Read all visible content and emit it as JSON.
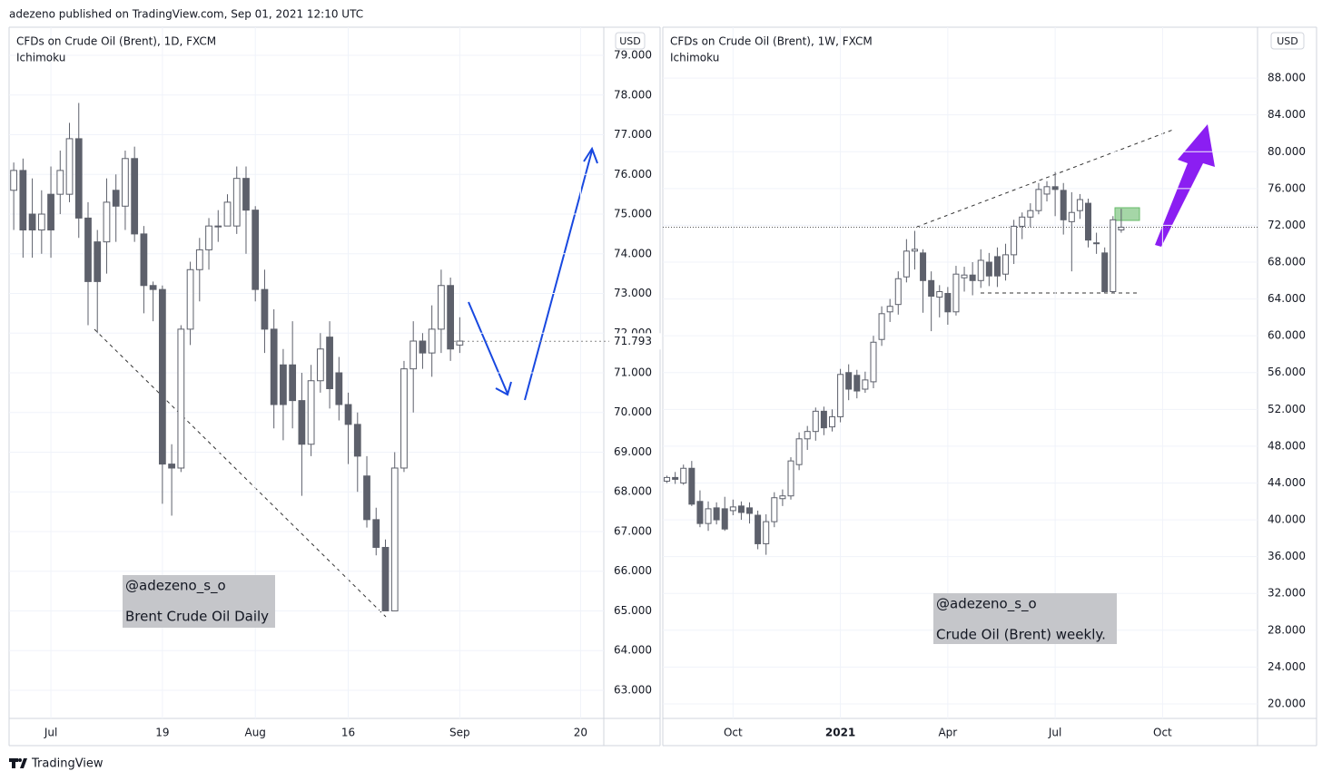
{
  "header": {
    "text": "adezeno published on TradingView.com, Sep 01, 2021 12:10 UTC"
  },
  "footer": {
    "brand": "TradingView"
  },
  "chart_data": [
    {
      "type": "candlestick",
      "title": "CFDs on Crude Oil (Brent), 1D, FXCM",
      "subtitle": "Ichimoku",
      "currency": "USD",
      "annotations": [
        "@adezeno_s_o",
        "Brent Crude Oil Daily"
      ],
      "up_color": "#ffffff",
      "down_color": "#5d606b",
      "wick_color": "#5d606b",
      "grid": true,
      "categories": [
        null,
        null,
        null,
        null,
        "Jul",
        null,
        null,
        null,
        null,
        null,
        null,
        null,
        null,
        null,
        null,
        null,
        "19",
        null,
        null,
        null,
        null,
        null,
        null,
        null,
        null,
        null,
        "Aug",
        null,
        null,
        null,
        null,
        null,
        null,
        null,
        null,
        null,
        "16",
        null,
        null,
        null,
        null,
        null,
        null,
        null,
        null,
        null,
        null,
        null,
        "Sep",
        null,
        null,
        null,
        null,
        null,
        null,
        null,
        null,
        null,
        null,
        null,
        null,
        "20",
        null,
        null
      ],
      "open": [
        75.6,
        76.1,
        75.0,
        74.6,
        75.5,
        75.5,
        75.5,
        76.9,
        74.9,
        74.3,
        74.3,
        75.6,
        75.2,
        76.4,
        74.5,
        73.2,
        73.1,
        68.7,
        68.6,
        72.1,
        73.6,
        74.1,
        74.7,
        74.7,
        74.7,
        75.9,
        75.1,
        73.1,
        72.1,
        71.2,
        71.2,
        70.3,
        69.2,
        70.8,
        71.9,
        71.0,
        70.2,
        69.7,
        68.4,
        67.3,
        66.6,
        65.0,
        68.6,
        71.1,
        71.8,
        71.5,
        72.1,
        73.2,
        71.7,
        null,
        null,
        null,
        null,
        null,
        null,
        null,
        null,
        null,
        null,
        null,
        null,
        null,
        null,
        null
      ],
      "high": [
        76.3,
        76.4,
        75.9,
        75.6,
        76.2,
        76.6,
        77.3,
        77.8,
        75.3,
        74.6,
        75.9,
        76.0,
        76.6,
        76.7,
        74.7,
        73.3,
        73.2,
        69.2,
        72.2,
        73.8,
        74.4,
        74.9,
        75.1,
        75.5,
        76.2,
        76.2,
        75.2,
        73.6,
        72.6,
        71.6,
        72.3,
        71.0,
        71.2,
        72.0,
        72.3,
        71.4,
        70.5,
        70.0,
        68.9,
        67.6,
        66.8,
        69.0,
        71.3,
        72.3,
        72.0,
        72.7,
        73.6,
        73.4,
        72.4,
        null,
        null,
        null,
        null,
        null,
        null,
        null,
        null,
        null,
        null,
        null,
        null,
        null,
        null,
        null
      ],
      "low": [
        74.6,
        73.9,
        73.9,
        74.0,
        73.9,
        75.0,
        75.3,
        74.4,
        72.2,
        72.0,
        73.5,
        74.3,
        74.6,
        74.3,
        72.5,
        72.3,
        67.7,
        67.4,
        68.5,
        71.7,
        72.8,
        73.6,
        74.3,
        74.7,
        74.5,
        74.0,
        72.8,
        71.5,
        69.6,
        69.3,
        69.6,
        67.9,
        68.9,
        70.5,
        70.1,
        69.8,
        68.7,
        68.0,
        67.1,
        66.4,
        65.0,
        65.0,
        68.5,
        70.0,
        71.1,
        70.9,
        71.5,
        71.3,
        71.5,
        null,
        null,
        null,
        null,
        null,
        null,
        null,
        null,
        null,
        null,
        null,
        null,
        null,
        null,
        null
      ],
      "close": [
        76.1,
        74.6,
        74.6,
        75.0,
        74.6,
        76.1,
        76.9,
        74.9,
        73.3,
        73.3,
        75.3,
        75.2,
        76.4,
        74.5,
        73.2,
        73.1,
        68.7,
        68.6,
        72.1,
        73.6,
        74.1,
        74.7,
        74.7,
        75.3,
        75.9,
        75.1,
        73.1,
        72.1,
        70.2,
        70.2,
        70.3,
        69.2,
        70.8,
        71.6,
        70.6,
        70.2,
        69.7,
        68.9,
        67.3,
        66.6,
        65.0,
        68.6,
        71.1,
        71.8,
        71.5,
        72.1,
        73.2,
        71.6,
        71.8,
        null,
        null,
        null,
        null,
        null,
        null,
        null,
        null,
        null,
        null,
        null,
        null,
        null,
        null,
        null
      ],
      "last_price": 71.793,
      "ylim": [
        62.29,
        79.71
      ],
      "yticks": [
        {
          "value": 63,
          "label": "63.000"
        },
        {
          "value": 64,
          "label": "64.000"
        },
        {
          "value": 65,
          "label": "65.000"
        },
        {
          "value": 66,
          "label": "66.000"
        },
        {
          "value": 67,
          "label": "67.000"
        },
        {
          "value": 68,
          "label": "68.000"
        },
        {
          "value": 69,
          "label": "69.000"
        },
        {
          "value": 70,
          "label": "70.000"
        },
        {
          "value": 71,
          "label": "71.000"
        },
        {
          "value": 72,
          "label": "72.000"
        },
        {
          "value": 73,
          "label": "73.000"
        },
        {
          "value": 74,
          "label": "74.000"
        },
        {
          "value": 75,
          "label": "75.000"
        },
        {
          "value": 76,
          "label": "76.000"
        },
        {
          "value": 77,
          "label": "77.000"
        },
        {
          "value": 78,
          "label": "78.000"
        },
        {
          "value": 79,
          "label": "79.000"
        }
      ]
    },
    {
      "type": "candlestick",
      "title": "CFDs on Crude Oil (Brent), 1W, FXCM",
      "subtitle": "Ichimoku",
      "currency": "USD",
      "annotations": [
        "@adezeno_s_o",
        "Crude Oil (Brent) weekly."
      ],
      "up_color": "#ffffff",
      "down_color": "#5d606b",
      "wick_color": "#5d606b",
      "grid": true,
      "categories": [
        null,
        null,
        null,
        null,
        null,
        null,
        null,
        null,
        "Oct",
        null,
        null,
        null,
        null,
        null,
        null,
        null,
        null,
        null,
        null,
        null,
        null,
        "2021",
        null,
        null,
        null,
        null,
        null,
        null,
        null,
        null,
        null,
        null,
        null,
        null,
        "Apr",
        null,
        null,
        null,
        null,
        null,
        null,
        null,
        null,
        null,
        null,
        null,
        null,
        "Jul",
        null,
        null,
        null,
        null,
        null,
        null,
        null,
        null,
        null,
        null,
        null,
        null,
        "Oct",
        null,
        null,
        null,
        null,
        null,
        null,
        null,
        null,
        null,
        null,
        null
      ],
      "open": [
        44.2,
        44.6,
        44.0,
        45.6,
        42.0,
        39.6,
        41.3,
        41.2,
        41.0,
        41.5,
        41.3,
        40.5,
        37.4,
        39.8,
        42.3,
        42.6,
        46.0,
        48.8,
        49.6,
        51.8,
        50.1,
        51.2,
        56.0,
        55.7,
        54.2,
        55.0,
        59.6,
        62.6,
        63.4,
        66.4,
        69.2,
        69.0,
        66.0,
        64.2,
        64.6,
        62.6,
        66.3,
        66.6,
        66.0,
        68.0,
        68.6,
        66.7,
        68.8,
        71.9,
        72.9,
        73.6,
        75.4,
        76.2,
        75.8,
        72.4,
        73.6,
        74.4,
        70.1,
        69.0,
        64.8,
        71.5,
        null,
        null,
        null,
        null,
        null,
        null,
        null,
        null,
        null,
        null,
        null,
        null,
        null,
        null,
        null,
        null
      ],
      "high": [
        44.8,
        45.2,
        46.0,
        46.4,
        43.2,
        42.0,
        41.9,
        42.5,
        42.2,
        42.0,
        41.9,
        41.0,
        40.6,
        43.0,
        43.3,
        46.8,
        49.5,
        50.2,
        52.2,
        52.3,
        52.0,
        56.4,
        56.9,
        56.3,
        56.1,
        60.0,
        63.2,
        64.0,
        67.0,
        70.5,
        71.4,
        69.4,
        67.0,
        65.5,
        65.3,
        67.6,
        67.5,
        68.0,
        69.4,
        69.0,
        69.6,
        70.0,
        72.6,
        73.4,
        74.4,
        76.6,
        76.8,
        77.8,
        76.6,
        75.6,
        75.4,
        74.9,
        71.2,
        69.6,
        73.0,
        73.8,
        null,
        null,
        null,
        null,
        null,
        null,
        null,
        null,
        null,
        null,
        null,
        null,
        null,
        null,
        null,
        null
      ],
      "low": [
        44.0,
        43.9,
        43.8,
        41.5,
        39.2,
        38.8,
        39.5,
        38.8,
        40.5,
        40.0,
        39.6,
        36.8,
        36.2,
        39.2,
        41.5,
        42.2,
        45.4,
        47.6,
        48.6,
        49.2,
        49.6,
        50.6,
        53.0,
        53.2,
        53.8,
        54.3,
        58.9,
        61.5,
        62.3,
        65.8,
        67.2,
        62.5,
        60.5,
        62.0,
        61.2,
        62.2,
        64.8,
        64.4,
        65.2,
        65.4,
        65.3,
        66.0,
        67.8,
        70.5,
        71.8,
        73.2,
        74.6,
        73.0,
        71.0,
        67.0,
        72.7,
        69.6,
        68.9,
        64.6,
        64.6,
        71.2,
        null,
        null,
        null,
        null,
        null,
        null,
        null,
        null,
        null,
        null,
        null,
        null,
        null,
        null,
        null,
        null
      ],
      "close": [
        44.6,
        44.4,
        45.6,
        41.7,
        39.6,
        41.2,
        40.0,
        39.0,
        41.4,
        40.8,
        40.7,
        37.4,
        39.8,
        42.4,
        42.6,
        46.4,
        48.8,
        49.6,
        51.8,
        50.0,
        51.2,
        55.8,
        54.2,
        54.0,
        55.2,
        59.3,
        62.4,
        63.2,
        66.2,
        69.2,
        69.4,
        66.0,
        64.3,
        64.8,
        62.6,
        66.7,
        66.6,
        66.0,
        68.2,
        66.5,
        66.5,
        68.8,
        71.9,
        72.9,
        73.6,
        75.9,
        76.2,
        75.9,
        72.6,
        73.4,
        74.8,
        70.4,
        70.0,
        64.8,
        72.6,
        71.8,
        null,
        null,
        null,
        null,
        null,
        null,
        null,
        null,
        null,
        null,
        null,
        null,
        null,
        null,
        null,
        null
      ],
      "price_line": 71.793,
      "ylim": [
        18.42,
        93.53
      ],
      "yticks": [
        {
          "value": 20,
          "label": "20.000"
        },
        {
          "value": 24,
          "label": "24.000"
        },
        {
          "value": 28,
          "label": "28.000"
        },
        {
          "value": 32,
          "label": "32.000"
        },
        {
          "value": 36,
          "label": "36.000"
        },
        {
          "value": 40,
          "label": "40.000"
        },
        {
          "value": 44,
          "label": "44.000"
        },
        {
          "value": 48,
          "label": "48.000"
        },
        {
          "value": 52,
          "label": "52.000"
        },
        {
          "value": 56,
          "label": "56.000"
        },
        {
          "value": 60,
          "label": "60.000"
        },
        {
          "value": 64,
          "label": "64.000"
        },
        {
          "value": 68,
          "label": "68.000"
        },
        {
          "value": 72,
          "label": "72.000"
        },
        {
          "value": 76,
          "label": "76.000"
        },
        {
          "value": 80,
          "label": "80.000"
        },
        {
          "value": 84,
          "label": "84.000"
        },
        {
          "value": 88,
          "label": "88.000"
        }
      ]
    }
  ]
}
